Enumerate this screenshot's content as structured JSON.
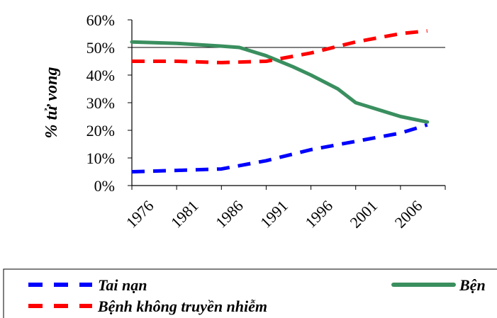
{
  "chart_data": {
    "type": "line",
    "ylabel": "% tử vong",
    "xlabel": "",
    "title": "",
    "x_ticks": [
      "1976",
      "1981",
      "1986",
      "1991",
      "1996",
      "2001",
      "2006"
    ],
    "y_ticks": [
      "0%",
      "10%",
      "20%",
      "30%",
      "40%",
      "50%",
      "60%"
    ],
    "ylim": [
      0,
      60
    ],
    "xlim": [
      1976,
      2011
    ],
    "grid": false,
    "reference_line": 50,
    "legend_position": "bottom",
    "series": [
      {
        "name": "Tai nạn",
        "color": "#0000ff",
        "style": "dashed",
        "x": [
          1976,
          1981,
          1986,
          1991,
          1996,
          2001,
          2006,
          2009
        ],
        "values": [
          5,
          5.5,
          6,
          9,
          13,
          16,
          19,
          22
        ]
      },
      {
        "name": "Bện",
        "color": "#3a8f5f",
        "style": "solid",
        "x": [
          1976,
          1981,
          1986,
          1988,
          1991,
          1994,
          1996,
          1999,
          2001,
          2004,
          2006,
          2009
        ],
        "values": [
          52,
          51.5,
          50.5,
          50,
          47,
          43,
          40,
          35,
          30,
          27,
          25,
          23
        ]
      },
      {
        "name": "Bệnh không truyền nhiễm",
        "color": "#ff0000",
        "style": "dashed",
        "x": [
          1976,
          1981,
          1986,
          1991,
          1996,
          2001,
          2006,
          2009
        ],
        "values": [
          45,
          45,
          44.5,
          45,
          48,
          52,
          55,
          56
        ]
      }
    ]
  }
}
